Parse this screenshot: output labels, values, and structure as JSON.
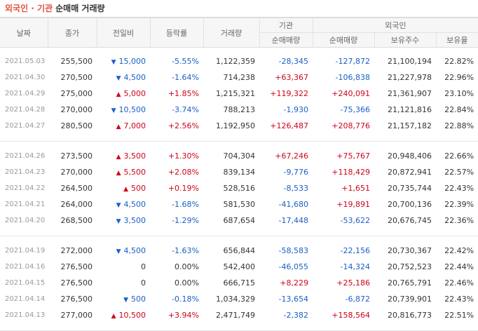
{
  "title": {
    "part1": "외국인 · 기관",
    "part2": "순매매 거래량"
  },
  "headers": {
    "date": "날짜",
    "close": "종가",
    "change": "전일비",
    "rate": "등락률",
    "volume": "거래량",
    "inst_group": "기관",
    "foreign_group": "외국인",
    "inst_net": "순매매량",
    "foreign_net": "순매매량",
    "foreign_hold": "보유주수",
    "foreign_ratio": "보유율"
  },
  "colors": {
    "up": "#d0021b",
    "down": "#1a5fc7",
    "title_accent": "#e0533d"
  },
  "groups": [
    [
      {
        "date": "2021.05.03",
        "close": "255,500",
        "dir": "down",
        "change": "15,000",
        "rate": "-5.55%",
        "volume": "1,122,359",
        "inst": "-28,345",
        "foreign": "-127,872",
        "hold": "21,100,194",
        "ratio": "22.82%"
      },
      {
        "date": "2021.04.30",
        "close": "270,500",
        "dir": "down",
        "change": "4,500",
        "rate": "-1.64%",
        "volume": "714,238",
        "inst": "+63,367",
        "foreign": "-106,838",
        "hold": "21,227,978",
        "ratio": "22.96%"
      },
      {
        "date": "2021.04.29",
        "close": "275,000",
        "dir": "up",
        "change": "5,000",
        "rate": "+1.85%",
        "volume": "1,215,321",
        "inst": "+119,322",
        "foreign": "+240,091",
        "hold": "21,361,907",
        "ratio": "23.10%"
      },
      {
        "date": "2021.04.28",
        "close": "270,000",
        "dir": "down",
        "change": "10,500",
        "rate": "-3.74%",
        "volume": "788,213",
        "inst": "-1,930",
        "foreign": "-75,366",
        "hold": "21,121,816",
        "ratio": "22.84%"
      },
      {
        "date": "2021.04.27",
        "close": "280,500",
        "dir": "up",
        "change": "7,000",
        "rate": "+2.56%",
        "volume": "1,192,950",
        "inst": "+126,487",
        "foreign": "+208,776",
        "hold": "21,157,182",
        "ratio": "22.88%"
      }
    ],
    [
      {
        "date": "2021.04.26",
        "close": "273,500",
        "dir": "up",
        "change": "3,500",
        "rate": "+1.30%",
        "volume": "704,304",
        "inst": "+67,246",
        "foreign": "+75,767",
        "hold": "20,948,406",
        "ratio": "22.66%"
      },
      {
        "date": "2021.04.23",
        "close": "270,000",
        "dir": "up",
        "change": "5,500",
        "rate": "+2.08%",
        "volume": "839,134",
        "inst": "-9,776",
        "foreign": "+118,429",
        "hold": "20,872,941",
        "ratio": "22.57%"
      },
      {
        "date": "2021.04.22",
        "close": "264,500",
        "dir": "up",
        "change": "500",
        "rate": "+0.19%",
        "volume": "528,516",
        "inst": "-8,533",
        "foreign": "+1,651",
        "hold": "20,735,744",
        "ratio": "22.43%"
      },
      {
        "date": "2021.04.21",
        "close": "264,000",
        "dir": "down",
        "change": "4,500",
        "rate": "-1.68%",
        "volume": "581,530",
        "inst": "-41,680",
        "foreign": "+19,891",
        "hold": "20,700,136",
        "ratio": "22.39%"
      },
      {
        "date": "2021.04.20",
        "close": "268,500",
        "dir": "down",
        "change": "3,500",
        "rate": "-1.29%",
        "volume": "687,654",
        "inst": "-17,448",
        "foreign": "-53,622",
        "hold": "20,676,745",
        "ratio": "22.36%"
      }
    ],
    [
      {
        "date": "2021.04.19",
        "close": "272,000",
        "dir": "down",
        "change": "4,500",
        "rate": "-1.63%",
        "volume": "656,844",
        "inst": "-58,583",
        "foreign": "-22,156",
        "hold": "20,730,367",
        "ratio": "22.42%"
      },
      {
        "date": "2021.04.16",
        "close": "276,500",
        "dir": "none",
        "change": "0",
        "rate": "0.00%",
        "volume": "542,400",
        "inst": "-46,055",
        "foreign": "-14,324",
        "hold": "20,752,523",
        "ratio": "22.44%"
      },
      {
        "date": "2021.04.15",
        "close": "276,500",
        "dir": "none",
        "change": "0",
        "rate": "0.00%",
        "volume": "666,715",
        "inst": "+8,229",
        "foreign": "+25,186",
        "hold": "20,765,791",
        "ratio": "22.46%"
      },
      {
        "date": "2021.04.14",
        "close": "276,500",
        "dir": "down",
        "change": "500",
        "rate": "-0.18%",
        "volume": "1,034,329",
        "inst": "-13,654",
        "foreign": "-6,872",
        "hold": "20,739,901",
        "ratio": "22.43%"
      },
      {
        "date": "2021.04.13",
        "close": "277,000",
        "dir": "up",
        "change": "10,500",
        "rate": "+3.94%",
        "volume": "2,471,749",
        "inst": "-2,382",
        "foreign": "+158,564",
        "hold": "20,816,773",
        "ratio": "22.51%"
      }
    ]
  ]
}
